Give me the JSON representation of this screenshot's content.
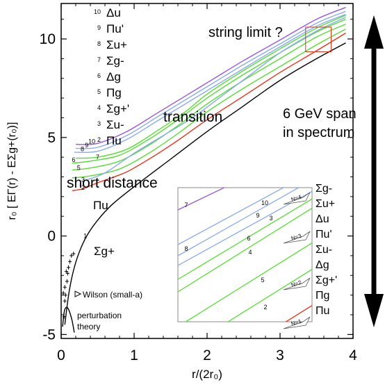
{
  "chart_data": {
    "type": "line",
    "xlabel": "r/(2r₀)",
    "ylabel": "r₀ [ EΓ(r) - EΣg+(r₀)]",
    "xlim": [
      0,
      4
    ],
    "ylim": [
      -5.2,
      11.8
    ],
    "x_ticks": [
      "0",
      "1",
      "2",
      "3",
      "4"
    ],
    "y_ticks": [
      "-5",
      "0",
      "5",
      "10"
    ],
    "colors": {
      "sigma_g_plus": "#000000",
      "pi_u": "#e8311a",
      "green": "#55dd33",
      "blue": "#88aaee",
      "purple": "#9955dd",
      "box": "#e8311a"
    },
    "state_list": [
      {
        "n": "10",
        "state": "Δu"
      },
      {
        "n": "9",
        "state": "Πu'"
      },
      {
        "n": "8",
        "state": "Σu+"
      },
      {
        "n": "7",
        "state": "Σg-"
      },
      {
        "n": "6",
        "state": "Δg"
      },
      {
        "n": "5",
        "state": "Πg"
      },
      {
        "n": "4",
        "state": "Σg+'"
      },
      {
        "n": "3",
        "state": "Σu-"
      },
      {
        "n": "2",
        "state": "Πu"
      }
    ],
    "series": [
      {
        "name": "1 Σg+",
        "color_key": "sigma_g_plus",
        "x": [
          0.05,
          0.08,
          0.12,
          0.18,
          0.25,
          0.35,
          0.5,
          0.7,
          1.0,
          1.5,
          2.0,
          2.5,
          3.0,
          3.5,
          3.9
        ],
        "y": [
          -4.5,
          -3.6,
          -2.6,
          -1.6,
          -0.8,
          0.0,
          0.8,
          1.6,
          2.5,
          3.9,
          5.3,
          6.6,
          7.9,
          9.0,
          9.8
        ]
      },
      {
        "name": "2 Πu",
        "color_key": "pi_u",
        "x": [
          0.15,
          0.3,
          0.5,
          0.8,
          1.0,
          1.5,
          2.0,
          2.5,
          3.0,
          3.5,
          3.9
        ],
        "y": [
          2.3,
          2.4,
          2.7,
          3.1,
          3.45,
          4.6,
          5.9,
          7.1,
          8.3,
          9.4,
          10.3
        ]
      },
      {
        "name": "4 Σg+'",
        "color_key": "green",
        "x": [
          0.15,
          0.4,
          0.8,
          1.2,
          1.6,
          2.0,
          2.5,
          3.0,
          3.5,
          3.9
        ],
        "y": [
          2.95,
          3.05,
          3.4,
          4.2,
          5.2,
          6.3,
          7.5,
          8.6,
          9.7,
          10.5
        ]
      },
      {
        "name": "5 Πg",
        "color_key": "green",
        "x": [
          0.15,
          0.4,
          0.8,
          1.2,
          1.6,
          2.0,
          2.5,
          3.0,
          3.5,
          3.9
        ],
        "y": [
          3.35,
          3.45,
          3.8,
          4.6,
          5.6,
          6.7,
          7.9,
          9.0,
          10.1,
          10.75
        ]
      },
      {
        "name": "6 Δg",
        "color_key": "green",
        "x": [
          0.15,
          0.4,
          0.8,
          1.2,
          1.6,
          2.0,
          2.5,
          3.0,
          3.5,
          3.9
        ],
        "y": [
          3.7,
          3.8,
          4.1,
          4.9,
          5.9,
          7.0,
          8.2,
          9.3,
          10.35,
          11.0
        ]
      },
      {
        "name": "7 Σg-",
        "color_key": "green",
        "x": [
          0.2,
          0.5,
          0.9,
          1.3,
          1.7,
          2.0,
          2.5,
          3.0,
          3.5,
          3.9
        ],
        "y": [
          3.95,
          4.0,
          4.4,
          5.3,
          6.3,
          7.2,
          8.4,
          9.5,
          10.55,
          11.2
        ]
      },
      {
        "name": "3 Σu-",
        "color_key": "blue",
        "x": [
          0.3,
          0.6,
          1.0,
          1.4,
          1.8,
          2.2,
          2.6,
          3.0,
          3.5,
          3.9
        ],
        "y": [
          2.8,
          3.2,
          4.2,
          5.1,
          6.0,
          7.1,
          8.2,
          9.3,
          10.4,
          11.1
        ]
      },
      {
        "name": "8 Σu+",
        "color_key": "blue",
        "x": [
          0.18,
          0.5,
          0.9,
          1.3,
          1.7,
          2.1,
          2.5,
          3.0,
          3.5,
          3.9
        ],
        "y": [
          4.25,
          4.3,
          4.9,
          5.8,
          6.7,
          7.6,
          8.5,
          9.6,
          10.65,
          11.25
        ]
      },
      {
        "name": "9 Πu'",
        "color_key": "blue",
        "x": [
          0.2,
          0.5,
          0.9,
          1.3,
          1.7,
          2.1,
          2.5,
          3.0,
          3.5,
          3.9
        ],
        "y": [
          4.45,
          4.5,
          5.1,
          6.0,
          6.9,
          7.8,
          8.7,
          9.75,
          10.8,
          11.4
        ]
      },
      {
        "name": "10 Δu",
        "color_key": "purple",
        "x": [
          0.2,
          0.5,
          0.9,
          1.3,
          1.7,
          2.1,
          2.5,
          3.0,
          3.5,
          3.9
        ],
        "y": [
          4.65,
          4.7,
          5.3,
          6.2,
          7.1,
          8.0,
          8.9,
          9.95,
          11.0,
          11.6
        ]
      }
    ],
    "curve_numbers": [
      {
        "text": "1",
        "x": 0.33,
        "y": -0.1
      },
      {
        "text": "2",
        "x": 0.3,
        "y": 2.35
      },
      {
        "text": "3",
        "x": 0.3,
        "y": 2.75
      },
      {
        "text": "5",
        "x": 0.24,
        "y": 3.35
      },
      {
        "text": "6",
        "x": 0.17,
        "y": 3.75
      },
      {
        "text": "7",
        "x": 0.5,
        "y": 3.9
      },
      {
        "text": "8",
        "x": 0.29,
        "y": 4.3
      },
      {
        "text": "9",
        "x": 0.35,
        "y": 4.5
      },
      {
        "text": "10",
        "x": 0.42,
        "y": 4.7
      }
    ],
    "lattice_points": [
      {
        "x": 0.04,
        "y": -4.1
      },
      {
        "x": 0.05,
        "y": -3.3
      },
      {
        "x": 0.06,
        "y": -3.0
      },
      {
        "x": 0.05,
        "y": -2.6
      },
      {
        "x": 0.08,
        "y": -2.3
      },
      {
        "x": 0.09,
        "y": -1.9
      },
      {
        "x": 0.1,
        "y": -1.6
      },
      {
        "x": 0.12,
        "y": -1.3
      },
      {
        "x": 0.14,
        "y": -1.0
      },
      {
        "x": 0.17,
        "y": -0.9
      },
      {
        "x": 0.03,
        "y": -2.9
      },
      {
        "x": 0.07,
        "y": -1.8
      }
    ],
    "perturbation_curve": {
      "x": [
        0.02,
        0.04,
        0.06,
        0.09,
        0.12,
        0.15,
        0.18
      ],
      "y": [
        -4.6,
        -3.9,
        -3.65,
        -3.65,
        -3.9,
        -4.3,
        -4.9
      ]
    },
    "annotations": {
      "string_limit": "string limit ?",
      "transition": "transition",
      "short_distance": "short distance",
      "gev_span_1": "6 GeV span",
      "gev_span_2": "in spectrum",
      "wilson": "Wilson (small-a)",
      "perturbation_1": "perturbation",
      "perturbation_2": "theory"
    },
    "string_box": {
      "x0": 3.35,
      "x1": 3.7,
      "y0": 9.35,
      "y1": 10.6
    },
    "inset": {
      "labels_right": [
        "Σg-",
        "Σu+",
        "Δu",
        "Πu'",
        "Σu-",
        "Δg",
        "Σg+'",
        "Πg",
        "Πu"
      ],
      "arrow_labels": [
        "N=4",
        "N=3",
        "N=2",
        "N=1"
      ],
      "curve_numbers": [
        "7",
        "10",
        "9",
        "3",
        "8",
        "6",
        "4",
        "5",
        "2"
      ]
    }
  }
}
